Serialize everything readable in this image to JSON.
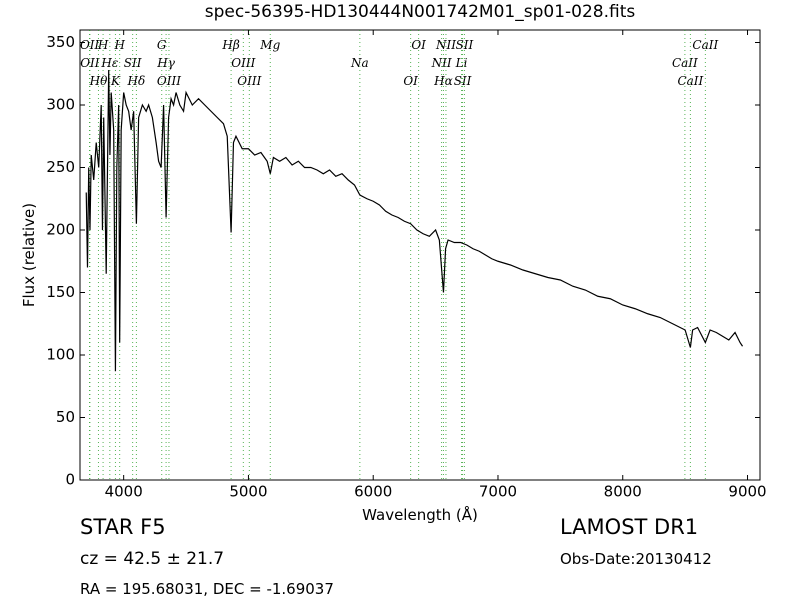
{
  "chart_data": {
    "type": "line",
    "title": "spec-56395-HD130444N001742M01_sp01-028.fits",
    "x_label": "Wavelength (Å)",
    "y_label": "Flux (relative)",
    "xlim": [
      3650,
      9100
    ],
    "ylim": [
      0,
      360
    ],
    "xticks": [
      4000,
      5000,
      6000,
      7000,
      8000,
      9000
    ],
    "yticks": [
      0,
      50,
      100,
      150,
      200,
      250,
      300,
      350
    ],
    "color": "#000000",
    "line_color": "#2ca02c",
    "x": [
      3700,
      3710,
      3720,
      3730,
      3740,
      3760,
      3780,
      3800,
      3820,
      3830,
      3840,
      3860,
      3880,
      3890,
      3900,
      3920,
      3934,
      3945,
      3960,
      3968,
      3980,
      4000,
      4020,
      4040,
      4060,
      4080,
      4102,
      4120,
      4150,
      4180,
      4200,
      4230,
      4260,
      4280,
      4300,
      4320,
      4340,
      4360,
      4380,
      4400,
      4420,
      4450,
      4480,
      4500,
      4550,
      4600,
      4650,
      4700,
      4750,
      4800,
      4830,
      4861,
      4880,
      4900,
      4950,
      5000,
      5050,
      5100,
      5150,
      5175,
      5200,
      5250,
      5300,
      5350,
      5400,
      5450,
      5500,
      5550,
      5600,
      5650,
      5700,
      5750,
      5800,
      5850,
      5893,
      5950,
      6000,
      6050,
      6100,
      6150,
      6200,
      6250,
      6300,
      6350,
      6400,
      6450,
      6500,
      6530,
      6563,
      6580,
      6600,
      6650,
      6700,
      6750,
      6800,
      6850,
      6900,
      6950,
      7000,
      7100,
      7200,
      7300,
      7400,
      7500,
      7600,
      7700,
      7800,
      7900,
      8000,
      8100,
      8200,
      8300,
      8400,
      8500,
      8542,
      8560,
      8600,
      8662,
      8700,
      8750,
      8800,
      8850,
      8900,
      8940,
      8960
    ],
    "values": [
      230,
      170,
      250,
      200,
      260,
      240,
      270,
      250,
      300,
      200,
      290,
      165,
      328,
      260,
      310,
      280,
      87,
      250,
      300,
      110,
      280,
      310,
      300,
      295,
      280,
      295,
      205,
      290,
      300,
      295,
      300,
      290,
      270,
      255,
      250,
      300,
      210,
      290,
      305,
      300,
      310,
      300,
      295,
      310,
      300,
      305,
      300,
      295,
      290,
      285,
      275,
      198,
      270,
      275,
      265,
      265,
      260,
      262,
      255,
      245,
      258,
      255,
      258,
      252,
      255,
      250,
      250,
      248,
      245,
      248,
      243,
      245,
      240,
      236,
      228,
      225,
      223,
      220,
      215,
      212,
      210,
      207,
      205,
      200,
      197,
      195,
      200,
      192,
      150,
      185,
      192,
      190,
      190,
      188,
      185,
      183,
      180,
      177,
      175,
      172,
      168,
      165,
      162,
      160,
      155,
      152,
      147,
      145,
      140,
      137,
      133,
      130,
      125,
      120,
      106,
      120,
      122,
      110,
      120,
      118,
      115,
      112,
      118,
      110,
      107
    ],
    "lines": [
      {
        "wavelength": 3727,
        "label": "OII"
      },
      {
        "wavelength": 3729,
        "label": "OII"
      },
      {
        "wavelength": 3798,
        "label": "Hθ"
      },
      {
        "wavelength": 3835,
        "label": "H"
      },
      {
        "wavelength": 3889,
        "label": "Hε"
      },
      {
        "wavelength": 3934,
        "label": "K"
      },
      {
        "wavelength": 3968,
        "label": "H"
      },
      {
        "wavelength": 4072,
        "label": "SII"
      },
      {
        "wavelength": 4102,
        "label": "Hδ"
      },
      {
        "wavelength": 4305,
        "label": "G"
      },
      {
        "wavelength": 4340,
        "label": "Hγ"
      },
      {
        "wavelength": 4363,
        "label": "OIII"
      },
      {
        "wavelength": 4861,
        "label": "Hβ"
      },
      {
        "wavelength": 4959,
        "label": "OIII"
      },
      {
        "wavelength": 5007,
        "label": "OIII"
      },
      {
        "wavelength": 5175,
        "label": "Mg"
      },
      {
        "wavelength": 5893,
        "label": "Na"
      },
      {
        "wavelength": 6300,
        "label": "OI"
      },
      {
        "wavelength": 6364,
        "label": "OI"
      },
      {
        "wavelength": 6548,
        "label": "NII"
      },
      {
        "wavelength": 6563,
        "label": "Hα"
      },
      {
        "wavelength": 6583,
        "label": "NII"
      },
      {
        "wavelength": 6708,
        "label": "Li"
      },
      {
        "wavelength": 6716,
        "label": "SII"
      },
      {
        "wavelength": 6731,
        "label": "SII"
      },
      {
        "wavelength": 8498,
        "label": "CaII"
      },
      {
        "wavelength": 8542,
        "label": "CaII"
      },
      {
        "wavelength": 8662,
        "label": "CaII"
      }
    ],
    "annotations": [
      "STAR   F5",
      "cz = 42.5 ± 21.7",
      "RA = 195.68031, DEC = -1.69037",
      "LAMOST DR1",
      "Obs-Date:20130412"
    ]
  }
}
